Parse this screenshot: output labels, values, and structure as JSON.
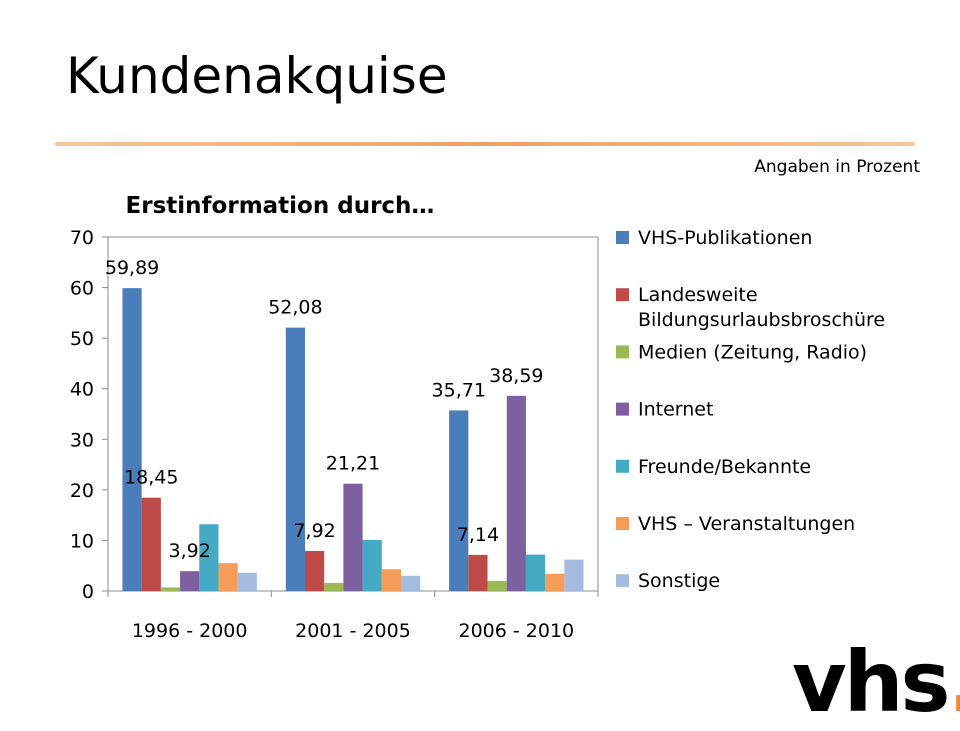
{
  "slide": {
    "title": "Kundenakquise",
    "note": "Angaben in Prozent",
    "logo_text": "vhs",
    "logo_dot": "."
  },
  "chart_data": {
    "type": "bar",
    "title": "Erstinformation durch…",
    "categories": [
      "1996 - 2000",
      "2001 - 2005",
      "2006 - 2010"
    ],
    "ylim": [
      0,
      70
    ],
    "yticks": [
      0,
      10,
      20,
      30,
      40,
      50,
      60,
      70
    ],
    "grid": false,
    "legend_position": "right",
    "series": [
      {
        "name": "VHS-Publikationen",
        "values": [
          59.89,
          52.08,
          35.71
        ],
        "color": "#4a7ebb"
      },
      {
        "name": "Landesweite Bildungsurlaubsbroschüre",
        "values": [
          18.45,
          7.92,
          7.14
        ],
        "color": "#be4b48"
      },
      {
        "name": "Medien (Zeitung, Radio)",
        "values": [
          0.7,
          1.6,
          2.0
        ],
        "color": "#98b954"
      },
      {
        "name": "Internet",
        "values": [
          3.92,
          21.21,
          38.59
        ],
        "color": "#7d60a0"
      },
      {
        "name": "Freunde/Bekannte",
        "values": [
          13.2,
          10.1,
          7.2
        ],
        "color": "#46aac5"
      },
      {
        "name": "VHS – Veranstaltungen",
        "values": [
          5.5,
          4.3,
          3.4
        ],
        "color": "#f59d56"
      },
      {
        "name": "Sonstige",
        "values": [
          3.6,
          3.0,
          6.2
        ],
        "color": "#a5bce0"
      }
    ],
    "data_labels": [
      {
        "series": 0,
        "category": 0,
        "text": "59,89"
      },
      {
        "series": 1,
        "category": 0,
        "text": "18,45"
      },
      {
        "series": 3,
        "category": 0,
        "text": "3,92"
      },
      {
        "series": 0,
        "category": 1,
        "text": "52,08"
      },
      {
        "series": 1,
        "category": 1,
        "text": "7,92"
      },
      {
        "series": 3,
        "category": 1,
        "text": "21,21"
      },
      {
        "series": 0,
        "category": 2,
        "text": "35,71"
      },
      {
        "series": 1,
        "category": 2,
        "text": "7,14"
      },
      {
        "series": 3,
        "category": 2,
        "text": "38,59"
      }
    ],
    "legend": [
      {
        "lines": [
          "VHS-Publikationen"
        ]
      },
      {
        "lines": [
          "Landesweite",
          "Bildungsurlaubsbroschüre"
        ]
      },
      {
        "lines": [
          "Medien (Zeitung, Radio)"
        ]
      },
      {
        "lines": [
          "Internet"
        ]
      },
      {
        "lines": [
          "Freunde/Bekannte"
        ]
      },
      {
        "lines": [
          "VHS – Veranstaltungen"
        ]
      },
      {
        "lines": [
          "Sonstige"
        ]
      }
    ]
  }
}
